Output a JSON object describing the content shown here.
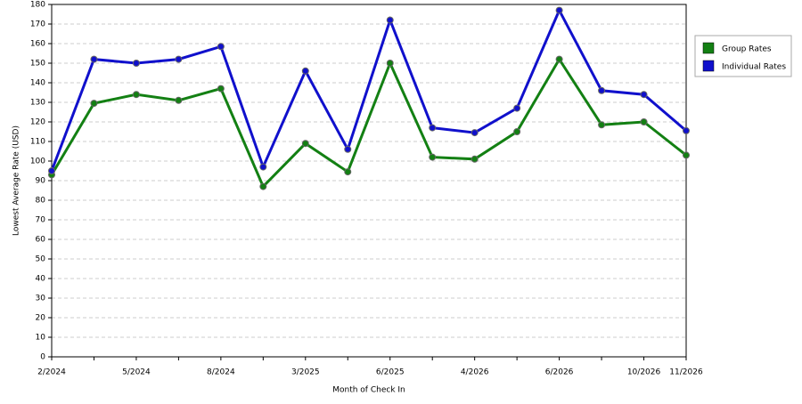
{
  "chart_data": {
    "type": "line",
    "x_label": "Month of Check In",
    "y_label": "Lowest Average Rate (USD)",
    "categories": [
      "2/2024",
      null,
      "5/2024",
      null,
      "8/2024",
      null,
      "3/2025",
      null,
      "6/2025",
      null,
      "4/2026",
      null,
      "6/2026",
      null,
      "10/2026",
      "11/2026"
    ],
    "series": [
      {
        "name": "Group Rates",
        "color": "#138013",
        "values": [
          93,
          129.5,
          134,
          131,
          137,
          87,
          109,
          94.5,
          150,
          102,
          101,
          115,
          152,
          118.5,
          120,
          103
        ]
      },
      {
        "name": "Individual Rates",
        "color": "#1010cc",
        "values": [
          95,
          152,
          150,
          152,
          158.5,
          97,
          146,
          106,
          172,
          117,
          114.5,
          127,
          177,
          136,
          134,
          115.5
        ]
      }
    ],
    "ylim": [
      0,
      180
    ],
    "yticks": [
      0,
      10,
      20,
      30,
      40,
      50,
      60,
      70,
      80,
      90,
      100,
      110,
      120,
      130,
      140,
      150,
      160,
      170,
      180
    ],
    "grid": true,
    "legend": "right"
  }
}
